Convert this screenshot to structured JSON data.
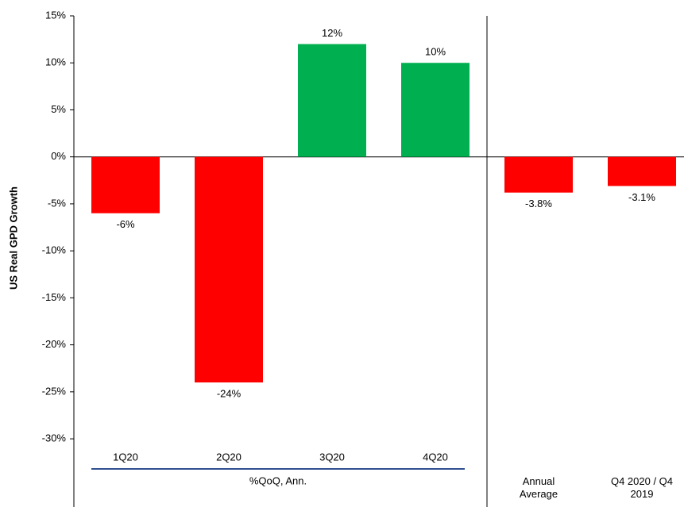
{
  "chart_data": {
    "type": "bar",
    "y_axis_label": "US Real GPD Growth",
    "group_label": "%QoQ, Ann.",
    "categories": [
      "1Q20",
      "2Q20",
      "3Q20",
      "4Q20",
      "Annual Average",
      "Q4 2020 / Q4 2019"
    ],
    "values": [
      -6,
      -24,
      12,
      10,
      -3.8,
      -3.1
    ],
    "value_labels": [
      "-6%",
      "-24%",
      "12%",
      "10%",
      "-3.8%",
      "-3.1%"
    ],
    "colors": [
      "#ff0000",
      "#ff0000",
      "#00b050",
      "#00b050",
      "#ff0000",
      "#ff0000"
    ],
    "ylim": [
      -37,
      15
    ],
    "yticks": [
      {
        "value": 15,
        "label": "15%"
      },
      {
        "value": 10,
        "label": "10%"
      },
      {
        "value": 5,
        "label": "5%"
      },
      {
        "value": 0,
        "label": "0%"
      },
      {
        "value": -5,
        "label": "-5%"
      },
      {
        "value": -10,
        "label": "-10%"
      },
      {
        "value": -15,
        "label": "-15%"
      },
      {
        "value": -20,
        "label": "-20%"
      },
      {
        "value": -25,
        "label": "-25%"
      },
      {
        "value": -30,
        "label": "-30%"
      }
    ]
  }
}
